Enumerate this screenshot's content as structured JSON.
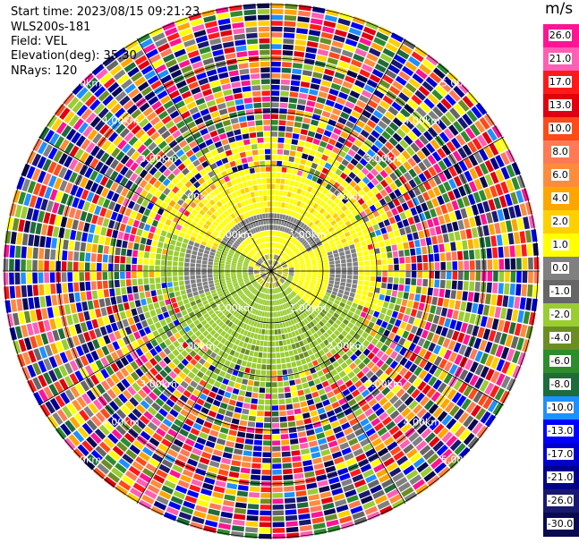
{
  "header": {
    "start_time": "Start time: 2023/08/15 09:21:23",
    "instrument": "WLS200s-181",
    "field": "Field: VEL",
    "elevation": "Elevation(deg): 35.30",
    "nrays": "NRays: 120"
  },
  "colorbar": {
    "unit": "m/s",
    "labels": [
      "26.0",
      "21.0",
      "17.0",
      "13.0",
      "10.0",
      "8.0",
      "6.0",
      "4.0",
      "2.0",
      "1.0",
      "0.0",
      "-1.0",
      "-2.0",
      "-4.0",
      "-6.0",
      "-8.0",
      "-10.0",
      "-13.0",
      "-17.0",
      "-21.0",
      "-26.0",
      "-30.0"
    ],
    "colors": [
      "#ff1493",
      "#ff5fb4",
      "#ff1a1a",
      "#e0000f",
      "#ff4a1a",
      "#ff7a55",
      "#ff8c3a",
      "#ffa500",
      "#ffd000",
      "#ffff00",
      "#808080",
      "#666666",
      "#9acd32",
      "#6b8e23",
      "#2e8b2e",
      "#1f6b3a",
      "#1e90ff",
      "#0000ff",
      "#0000cd",
      "#00008b",
      "#191970",
      "#0a0a50"
    ]
  },
  "range_rings": {
    "labels": [
      "1.00km",
      "2.00km",
      "3.00km",
      "4.00km",
      "5.00km"
    ]
  }
}
